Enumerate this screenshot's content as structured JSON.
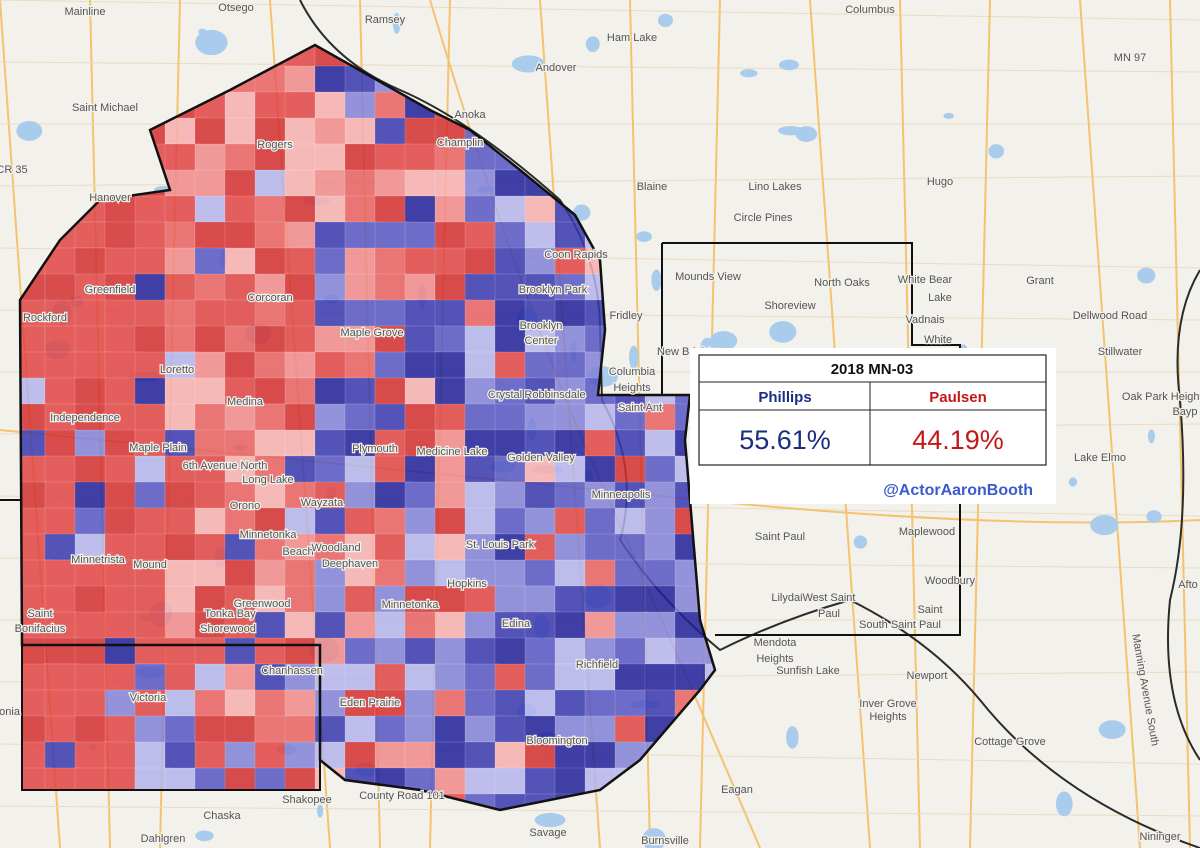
{
  "map_labels": [
    "Otsego",
    "Mainline",
    "Ramsey",
    "Ham Lake",
    "Columbus",
    "MN 97",
    "Andover",
    "Saint Michael",
    "Anoka",
    "Champlin",
    "Rogers",
    "CR 35",
    "Blaine",
    "Lino Lakes",
    "Hugo",
    "Hanover",
    "Circle Pines",
    "Coon Rapids",
    "Mounds View",
    "North Oaks",
    "White Bear",
    "Lake",
    "Grant",
    "Greenfield",
    "Corcoran",
    "Brooklyn Park",
    "Dellwood Road",
    "Rockford",
    "Brooklyn",
    "Center",
    "Fridley",
    "Shoreview",
    "Vadnais",
    "Maple Grove",
    "White",
    "New Brighton",
    "Stillwater",
    "Columbia",
    "Heights",
    "Loretto",
    "Medina",
    "Crystal",
    "Robbinsdale",
    "Saint Ant",
    "Oak Park Heights",
    "Independence",
    "Bayp",
    "Maple Plain",
    "Plymouth",
    "Golden Valley",
    "Medicine Lake",
    "Lake Elmo",
    "6th Avenue North",
    "Long Lake",
    "Orono",
    "Wayzata",
    "Minneapolis",
    "St. Louis Park",
    "Maplewood",
    "Minnetonka",
    "Beach",
    "Woodland",
    "Minnetrista",
    "Saint Paul",
    "Mound",
    "Deephaven",
    "Hopkins",
    "Woodbury",
    "Minnetonka",
    "Lilydale",
    "West Saint",
    "Paul",
    "Tonka Bay",
    "Greenwood",
    "Shorewood",
    "Saint",
    "Bonifacius",
    "Edina",
    "South Saint Paul",
    "Saint",
    "Afto",
    "Mendota",
    "Heights",
    "Richfield",
    "Chanhassen",
    "Sunfish Lake",
    "Newport",
    "Manning Avenue South",
    "Victoria",
    "Eden Prairie",
    "Inver Grove",
    "Heights",
    "Bloomington",
    "Cottage Grove",
    "Eagan",
    "Shakopee",
    "County Road 101",
    "Chaska",
    "Dahlgren",
    "Savage",
    "Burnsville",
    "Nininger",
    "tonia"
  ],
  "info_box": {
    "title": "2018 MN-03",
    "candidates": [
      {
        "name": "Phillips",
        "result": "55.61%"
      },
      {
        "name": "Paulsen",
        "result": "44.19%"
      }
    ],
    "credit": "@ActorAaronBooth"
  }
}
